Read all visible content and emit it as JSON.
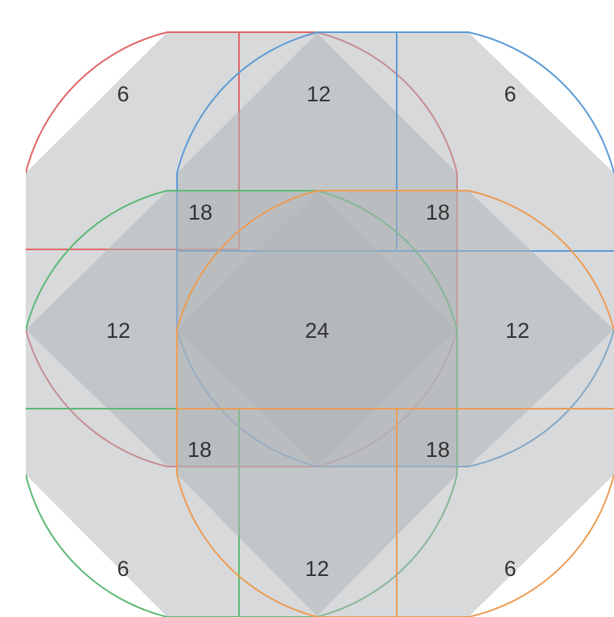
{
  "diagram": {
    "colors": {
      "background": "#ffffff",
      "fill": "#b0b3b8",
      "fill_opacity": 0.5,
      "red": "#e06666",
      "blue": "#5b9bd5",
      "green": "#5cb874",
      "orange": "#ed9b52",
      "label": "#333333"
    },
    "labels": {
      "top_left": "6",
      "top_center": "12",
      "top_right": "6",
      "upper_left_overlap": "18",
      "upper_right_overlap": "18",
      "middle_left": "12",
      "center": "24",
      "middle_right": "12",
      "lower_left_overlap": "18",
      "lower_right_overlap": "18",
      "bottom_left": "6",
      "bottom_center": "12",
      "bottom_right": "6"
    }
  }
}
